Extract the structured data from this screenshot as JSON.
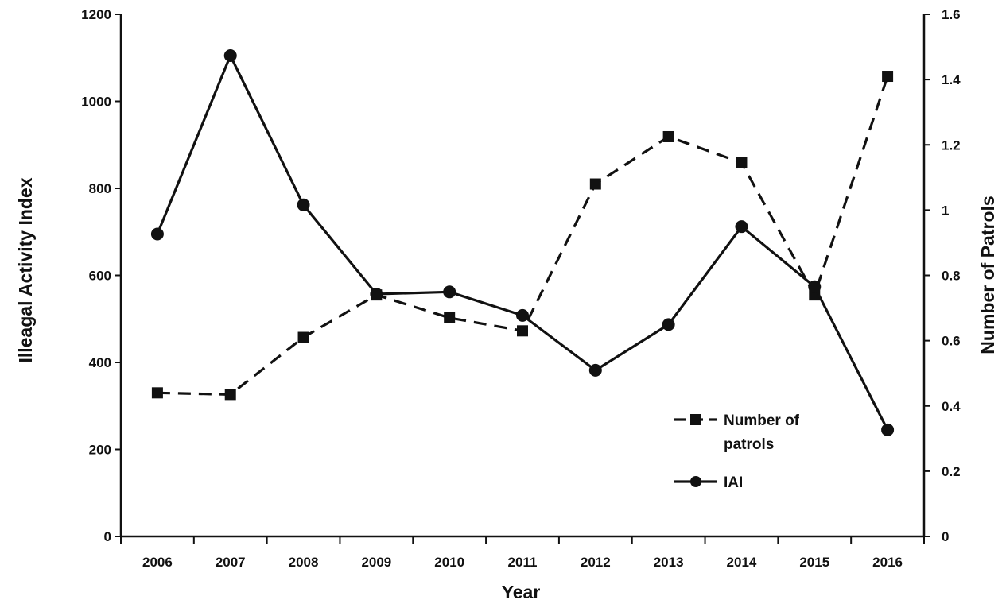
{
  "chart_data": {
    "type": "line",
    "title": "",
    "xlabel": "Year",
    "ylabel_left": "Illeagal Activity Index",
    "ylabel_right": "Number of Patrols",
    "categories": [
      "2006",
      "2007",
      "2008",
      "2009",
      "2010",
      "2011",
      "2012",
      "2013",
      "2014",
      "2015",
      "2016"
    ],
    "ylim_left": [
      0,
      1200
    ],
    "yticks_left": [
      0,
      200,
      400,
      600,
      800,
      1000,
      1200
    ],
    "ylim_right": [
      0,
      1.6
    ],
    "yticks_right": [
      "0",
      "0.2",
      "0.4",
      "0.6",
      "0.8",
      "1",
      "1.2",
      "1.4",
      "1.6"
    ],
    "grid": false,
    "legend_position": "bottom-right inside",
    "series": [
      {
        "name": "Number of patrols",
        "axis": "right",
        "style": "dashed",
        "marker": "square",
        "values": [
          0.44,
          0.435,
          0.61,
          0.74,
          0.67,
          0.63,
          1.08,
          1.225,
          1.145,
          0.74,
          1.41
        ]
      },
      {
        "name": "IAI",
        "axis": "left",
        "style": "solid",
        "marker": "circle",
        "values": [
          695,
          1105,
          762,
          557,
          562,
          508,
          382,
          487,
          712,
          574,
          245
        ]
      }
    ],
    "legend": {
      "entries": [
        {
          "label_line1": "Number of",
          "label_line2": "patrols",
          "style": "dashed",
          "marker": "square"
        },
        {
          "label_line1": "IAI",
          "label_line2": "",
          "style": "solid",
          "marker": "circle"
        }
      ]
    },
    "colors": {
      "line": "#111111",
      "axis": "#111111",
      "background": "#ffffff"
    }
  }
}
